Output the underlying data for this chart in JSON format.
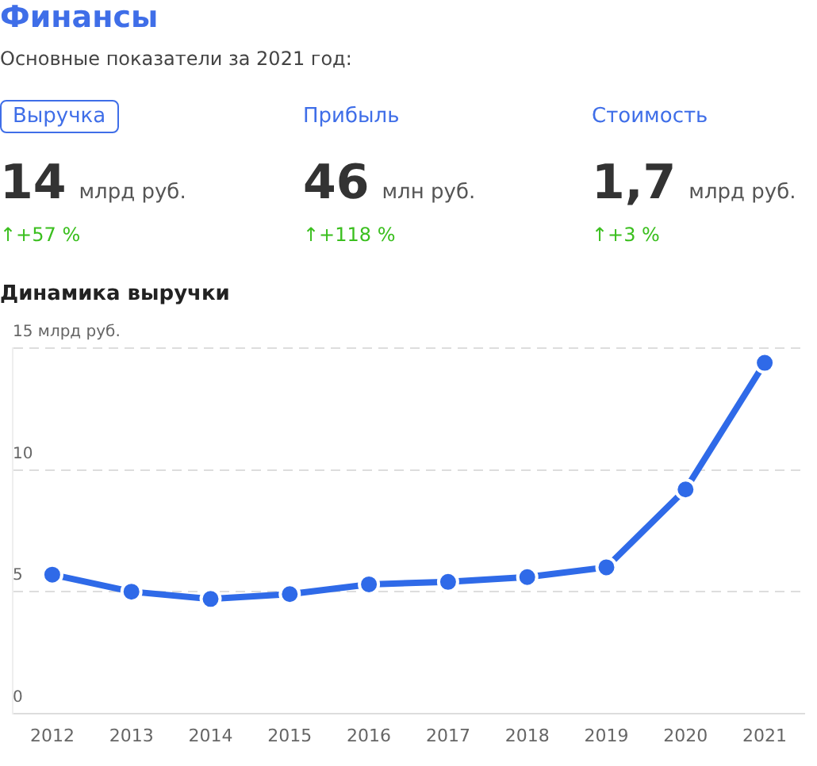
{
  "chart_data": [
    {
      "type": "other",
      "title": "Финансы",
      "subtitle": "Основные показатели за 2021 год:",
      "annotations": [
        "Выручка",
        "Прибыль",
        "Стоимость",
        "14",
        "46",
        "1,7",
        "млрд руб.",
        "млн руб.",
        "млрд руб.",
        "↑+57 %",
        "↑+118 %",
        "↑+3 %"
      ]
    },
    {
      "type": "line",
      "title": "Динамика выручки",
      "categories": [
        "2012",
        "2013",
        "2014",
        "2015",
        "2016",
        "2017",
        "2018",
        "2019",
        "2020",
        "2021"
      ],
      "series": [
        {
          "color": "#2f6ae8",
          "values": [
            5.7,
            5.0,
            4.7,
            4.9,
            5.3,
            5.4,
            5.6,
            6.0,
            9.2,
            14.4
          ]
        }
      ],
      "ylim": [
        0,
        15
      ],
      "yticks": [
        0,
        5,
        10,
        {
          "value": 15,
          "label": "15 млрд руб."
        }
      ],
      "grid": "y",
      "legend": false,
      "marker": "circle",
      "line_style": "solid"
    }
  ]
}
